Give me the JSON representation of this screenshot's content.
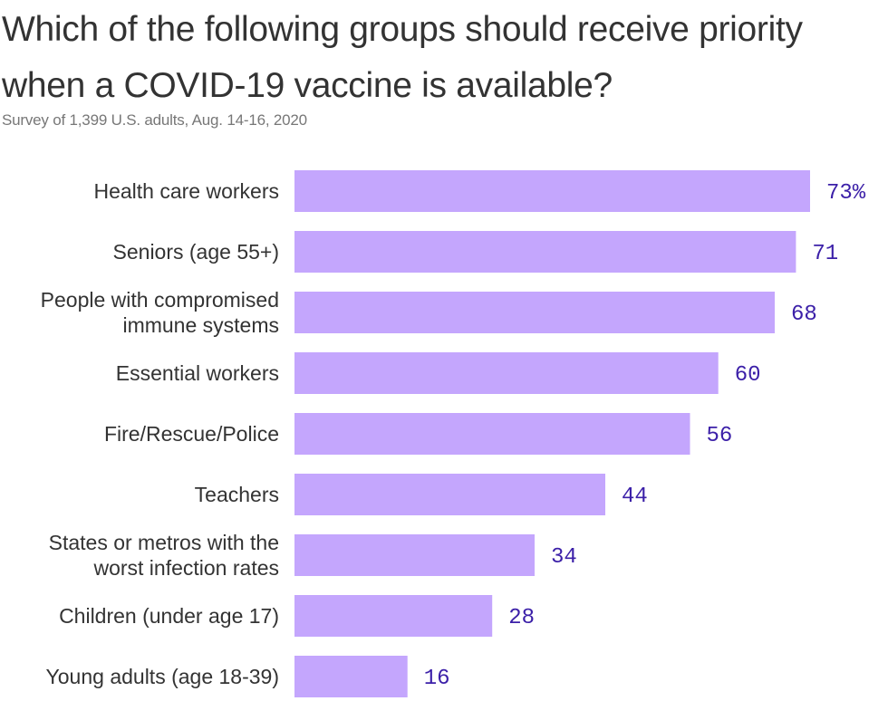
{
  "header": {
    "title": "Which of the following groups should receive priority when a COVID-19 vaccine is available?",
    "subtitle": "Survey of 1,399 U.S. adults, Aug. 14-16, 2020"
  },
  "colors": {
    "bar": "#c4a6fd",
    "value_text": "#3b1fa8",
    "title_text": "#333333",
    "subtitle_text": "#777777"
  },
  "chart_data": {
    "type": "bar",
    "orientation": "horizontal",
    "title": "Which of the following groups should receive priority when a COVID-19 vaccine is available?",
    "subtitle": "Survey of 1,399 U.S. adults, Aug. 14-16, 2020",
    "categories": [
      [
        "Health care workers"
      ],
      [
        "Seniors (age 55+)"
      ],
      [
        "People with compromised",
        "immune systems"
      ],
      [
        "Essential workers"
      ],
      [
        "Fire/Rescue/Police"
      ],
      [
        "Teachers"
      ],
      [
        "States or metros with the",
        "worst infection rates"
      ],
      [
        "Children (under age 17)"
      ],
      [
        "Young adults (age 18-39)"
      ]
    ],
    "values": [
      73,
      71,
      68,
      60,
      56,
      44,
      34,
      28,
      16
    ],
    "value_labels": [
      "73%",
      "71",
      "68",
      "60",
      "56",
      "44",
      "34",
      "28",
      "16"
    ],
    "unit": "%",
    "xlim": [
      0,
      73
    ],
    "grid": false,
    "legend": "none"
  }
}
